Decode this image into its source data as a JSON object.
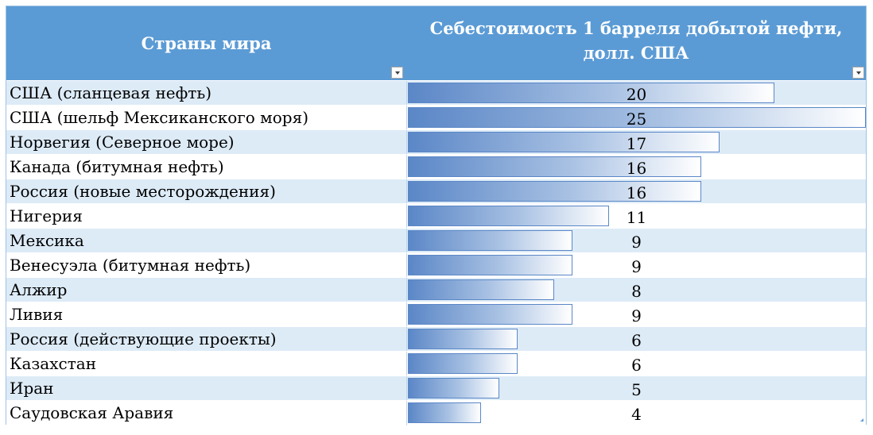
{
  "table": {
    "col1_header": "Страны мира",
    "col2_header_line1": "Себестоимость 1 барреля добытой нефти,",
    "col2_header_line2": "долл. США",
    "filter_icon": "chevron-down-icon"
  },
  "colors": {
    "header_bg": "#5b9bd5",
    "band": "#ddebf7",
    "bar": "#5b87c7"
  },
  "chart_data": {
    "type": "bar",
    "orientation": "horizontal",
    "categories": [
      "США (сланцевая нефть)",
      "США (шельф Мексиканского моря)",
      "Норвегия (Северное море)",
      "Канада (битумная нефть)",
      "Россия (новые месторождения)",
      "Нигерия",
      "Мексика",
      "Венесуэла (битумная нефть)",
      "Алжир",
      "Ливия",
      "Россия (действующие проекты)",
      "Казахстан",
      "Иран",
      "Саудовская Аравия"
    ],
    "values": [
      20,
      25,
      17,
      16,
      16,
      11,
      9,
      9,
      8,
      9,
      6,
      6,
      5,
      4
    ],
    "xlim": [
      0,
      25
    ],
    "ylabel": "Страны мира",
    "xlabel": "Себестоимость 1 барреля добытой нефти, долл. США"
  }
}
